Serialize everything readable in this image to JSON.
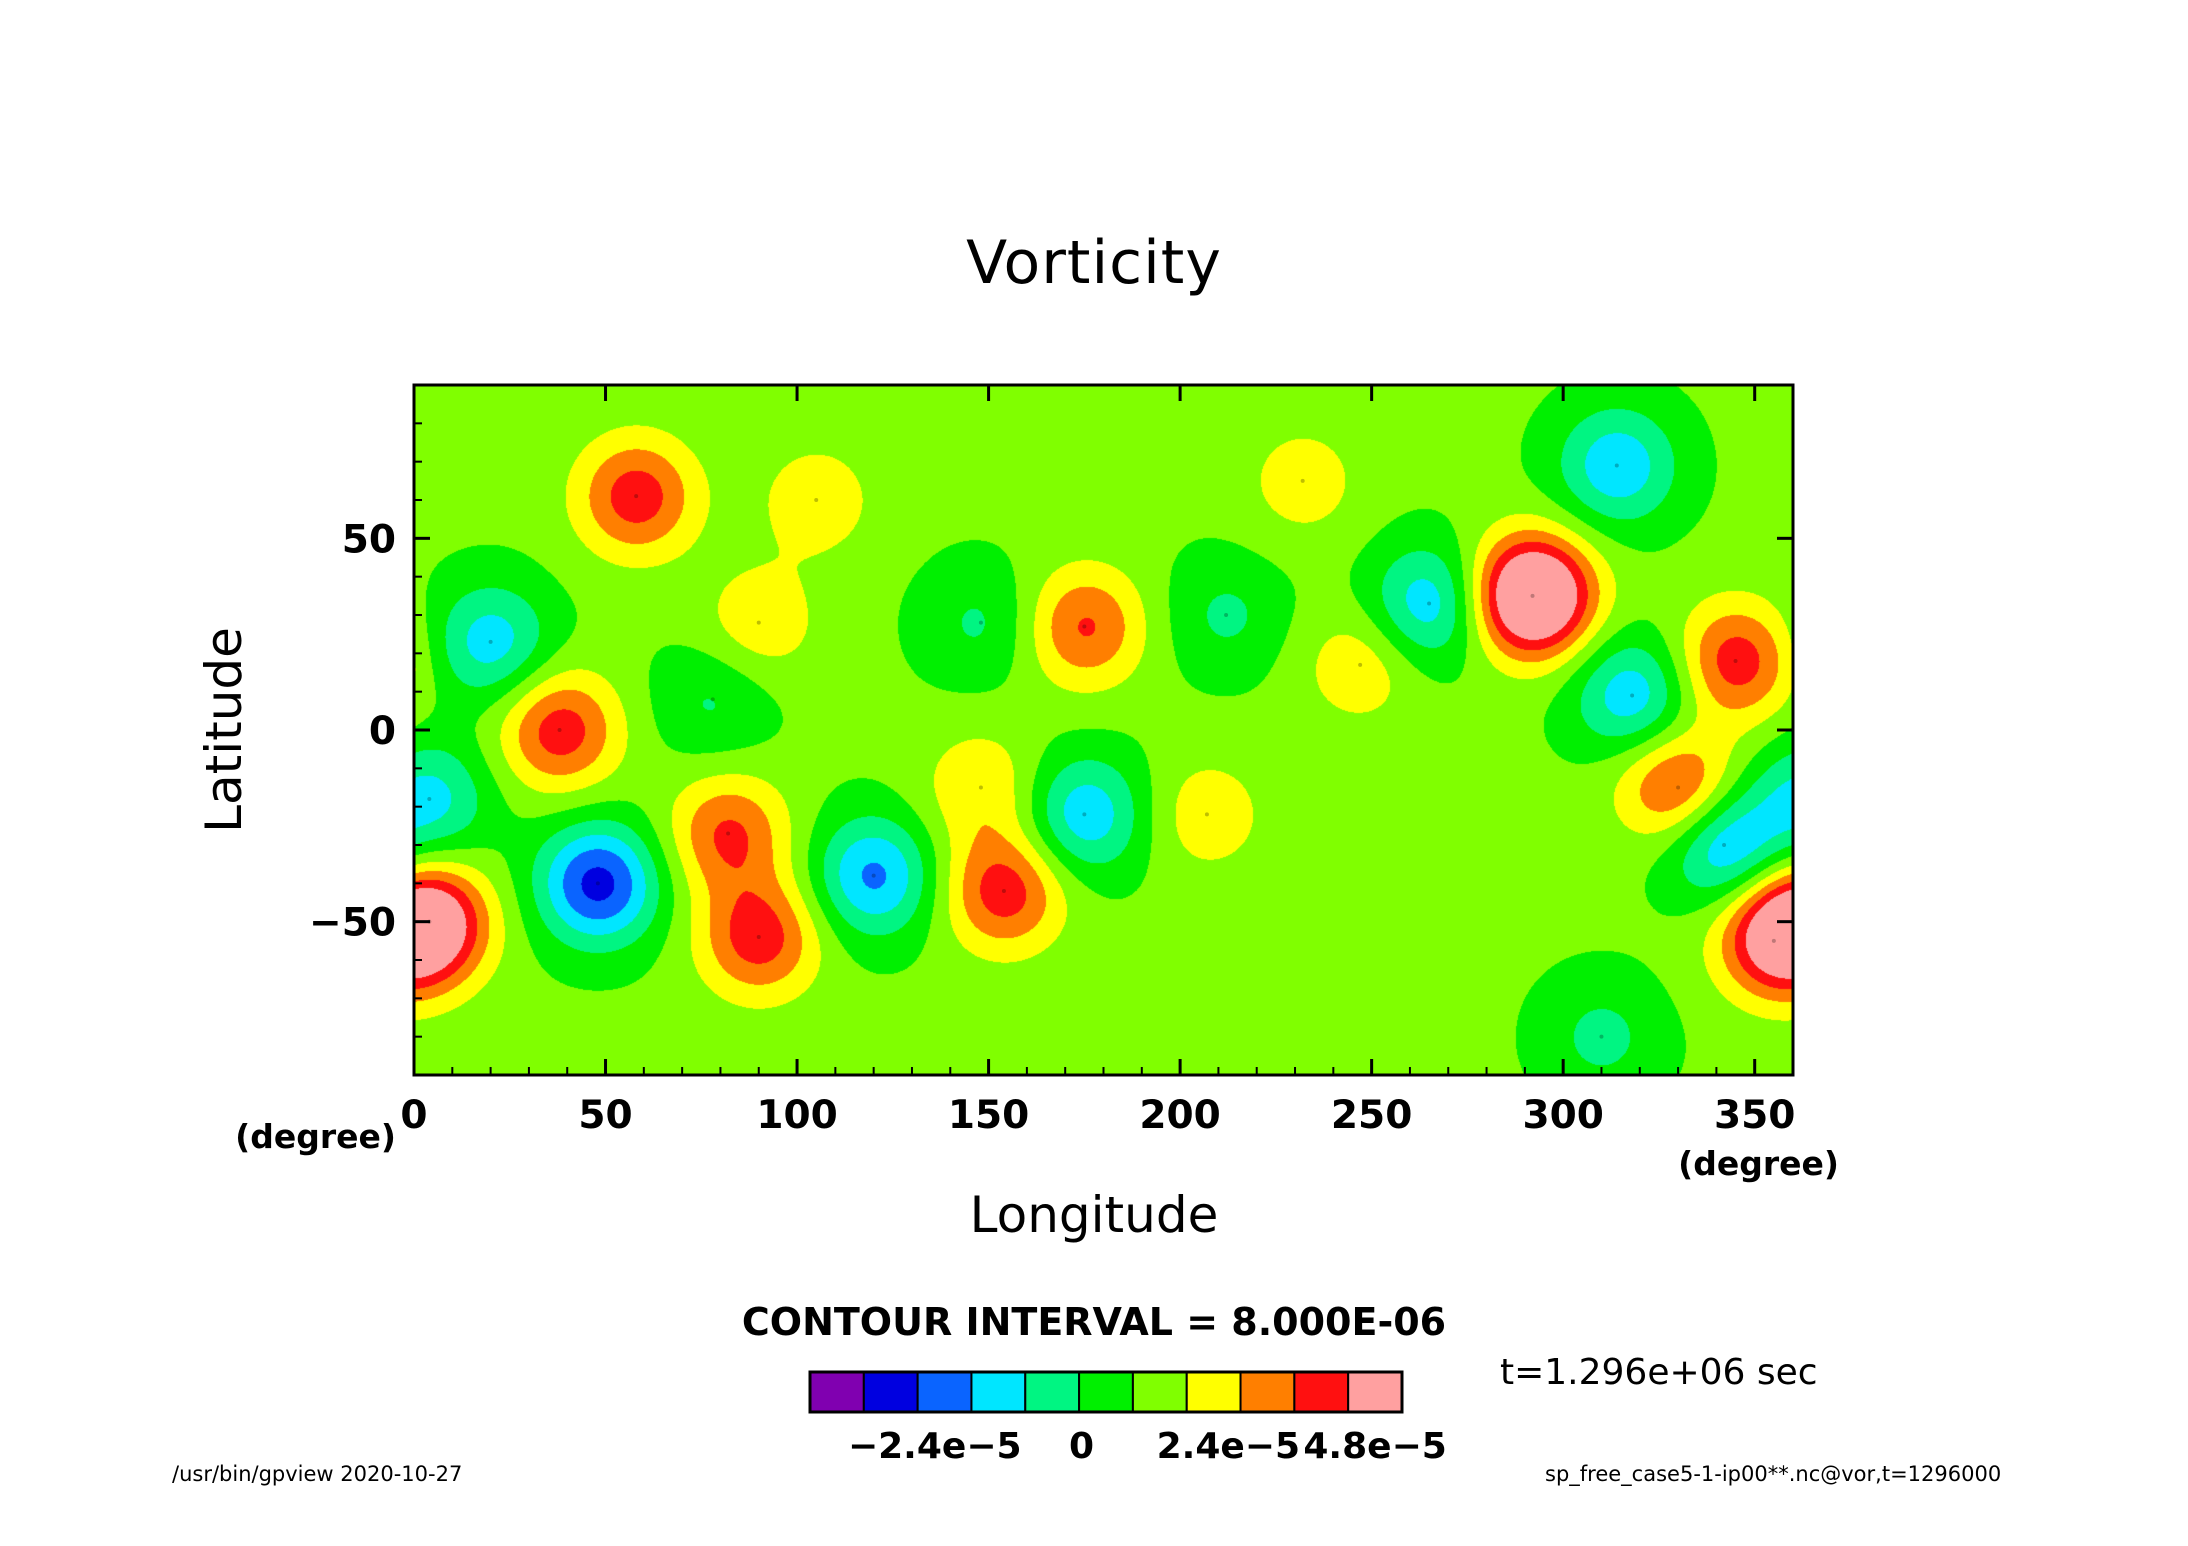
{
  "chart_data": {
    "type": "heatmap",
    "title": "Vorticity",
    "xlabel": "Longitude",
    "ylabel": "Latitude",
    "x_unit": "(degree)",
    "y_unit": "(degree)",
    "xlim": [
      0,
      360
    ],
    "ylim": [
      -90,
      90
    ],
    "x_ticks": [
      0,
      50,
      100,
      150,
      200,
      250,
      300,
      350
    ],
    "y_ticks": [
      -50,
      0,
      50
    ],
    "contour_note": "CONTOUR INTERVAL = 8.000E-06",
    "time_note": "t=1.296e+06 sec",
    "colorbar": {
      "colors": [
        "#8000b0",
        "#0000e0",
        "#0a64ff",
        "#00e6ff",
        "#00f582",
        "#00f000",
        "#80ff00",
        "#ffff00",
        "#ff7f00",
        "#ff1010",
        "#ffa0a0"
      ],
      "labels": [
        "−2.4e−5",
        "0",
        "2.4e−5",
        "4.8e−5"
      ],
      "label_values": [
        -2.4e-05,
        0,
        2.4e-05,
        4.8e-05
      ],
      "min": -4e-05,
      "max": 4.8e-05
    },
    "features": [
      {
        "name": "positive",
        "lon": 292,
        "lat": 35,
        "value": 6e-05
      },
      {
        "name": "positive",
        "lon": 4,
        "lat": -50,
        "value": 4e-05
      },
      {
        "name": "positive",
        "lon": 58,
        "lat": 61,
        "value": 3e-05
      },
      {
        "name": "positive",
        "lon": 345,
        "lat": 18,
        "value": 3e-05
      },
      {
        "name": "positive",
        "lon": 330,
        "lat": -15,
        "value": 3e-05
      },
      {
        "name": "positive",
        "lon": 355,
        "lat": -55,
        "value": 3e-05
      },
      {
        "name": "positive",
        "lon": 38,
        "lat": 0,
        "value": 3e-05
      },
      {
        "name": "positive",
        "lon": 154,
        "lat": -42,
        "value": 3e-05
      },
      {
        "name": "positive",
        "lon": 90,
        "lat": -54,
        "value": 3e-05
      },
      {
        "name": "positive",
        "lon": 82,
        "lat": -27,
        "value": 2.6e-05
      },
      {
        "name": "positive",
        "lon": 175,
        "lat": 27,
        "value": 2.6e-05
      },
      {
        "name": "positive",
        "lon": 105,
        "lat": 60,
        "value": 1.3e-05
      },
      {
        "name": "positive",
        "lon": 90,
        "lat": 28,
        "value": 1.4e-05
      },
      {
        "name": "positive",
        "lon": 247,
        "lat": 17,
        "value": 1.4e-05
      },
      {
        "name": "positive",
        "lon": 207,
        "lat": -22,
        "value": 1.3e-05
      },
      {
        "name": "positive",
        "lon": 148,
        "lat": -15,
        "value": 1.5e-05
      },
      {
        "name": "positive",
        "lon": 232,
        "lat": 65,
        "value": 1.2e-05
      },
      {
        "name": "negative",
        "lon": 48,
        "lat": -40,
        "value": -4e-05
      },
      {
        "name": "negative",
        "lon": 314,
        "lat": 69,
        "value": -2.6e-05
      },
      {
        "name": "negative",
        "lon": 318,
        "lat": 9,
        "value": -2.6e-05
      },
      {
        "name": "negative",
        "lon": 342,
        "lat": -30,
        "value": -3e-05
      },
      {
        "name": "negative",
        "lon": 120,
        "lat": -38,
        "value": -3e-05
      },
      {
        "name": "negative",
        "lon": 175,
        "lat": -22,
        "value": -2.6e-05
      },
      {
        "name": "negative",
        "lon": 265,
        "lat": 33,
        "value": -2.6e-05
      },
      {
        "name": "negative",
        "lon": 20,
        "lat": 23,
        "value": -2.4e-05
      },
      {
        "name": "negative",
        "lon": 4,
        "lat": -18,
        "value": -2.2e-05
      },
      {
        "name": "negative",
        "lon": 148,
        "lat": 28,
        "value": -1.2e-05
      },
      {
        "name": "negative",
        "lon": 212,
        "lat": 30,
        "value": -1.2e-05
      },
      {
        "name": "negative",
        "lon": 78,
        "lat": 8,
        "value": -1.2e-05
      },
      {
        "name": "negative",
        "lon": 310,
        "lat": -80,
        "value": -1.3e-05
      }
    ]
  },
  "footer": {
    "left": "/usr/bin/gpview   2020-10-27",
    "right": "sp_free_case5-1-ip00**.nc@vor,t=1296000"
  }
}
